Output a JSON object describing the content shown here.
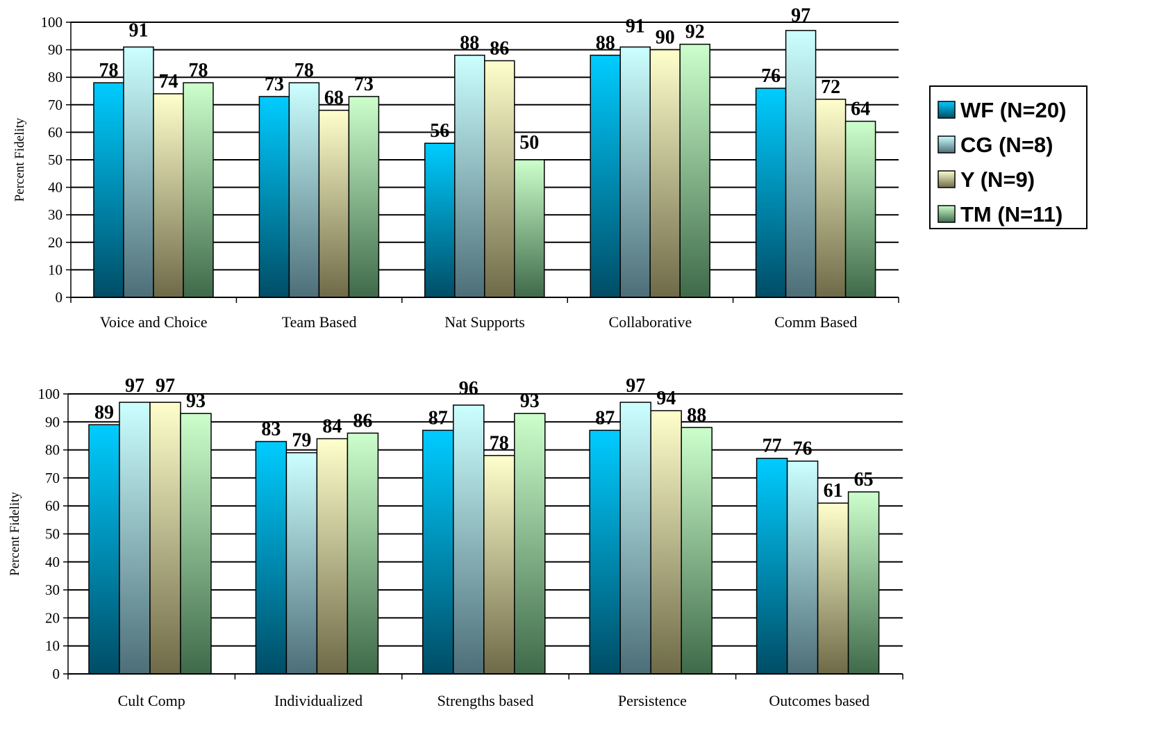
{
  "chart_data": [
    {
      "type": "bar",
      "ylabel": "Percent Fidelity",
      "ylim": [
        0,
        100
      ],
      "yticks": [
        0,
        10,
        20,
        30,
        40,
        50,
        60,
        70,
        80,
        90,
        100
      ],
      "grid": true,
      "legend": "right",
      "categories": [
        "Voice and Choice",
        "Team Based",
        "Nat Supports",
        "Collaborative",
        "Comm Based"
      ],
      "series": [
        {
          "name": "WF (N=20)",
          "values": [
            78,
            73,
            56,
            88,
            76
          ]
        },
        {
          "name": "CG (N=8)",
          "values": [
            91,
            78,
            88,
            91,
            97
          ]
        },
        {
          "name": "Y (N=9)",
          "values": [
            74,
            68,
            86,
            90,
            72
          ]
        },
        {
          "name": "TM (N=11)",
          "values": [
            78,
            73,
            50,
            92,
            64
          ]
        }
      ]
    },
    {
      "type": "bar",
      "ylabel": "Percent Fidelity",
      "ylim": [
        0,
        100
      ],
      "yticks": [
        0,
        10,
        20,
        30,
        40,
        50,
        60,
        70,
        80,
        90,
        100
      ],
      "grid": true,
      "categories": [
        "Cult Comp",
        "Individualized",
        "Strengths based",
        "Persistence",
        "Outcomes based"
      ],
      "series": [
        {
          "name": "WF (N=20)",
          "values": [
            89,
            83,
            87,
            87,
            77
          ]
        },
        {
          "name": "CG (N=8)",
          "values": [
            97,
            79,
            96,
            97,
            76
          ]
        },
        {
          "name": "Y (N=9)",
          "values": [
            97,
            84,
            78,
            94,
            61
          ]
        },
        {
          "name": "TM (N=11)",
          "values": [
            93,
            86,
            93,
            88,
            65
          ]
        }
      ]
    }
  ],
  "series_colors": [
    {
      "top": "#00ccff",
      "bottom": "#004d66"
    },
    {
      "top": "#ccffff",
      "bottom": "#4d6e78"
    },
    {
      "top": "#ffffcc",
      "bottom": "#6e6a48"
    },
    {
      "top": "#ccffcc",
      "bottom": "#3f6a4a"
    }
  ]
}
